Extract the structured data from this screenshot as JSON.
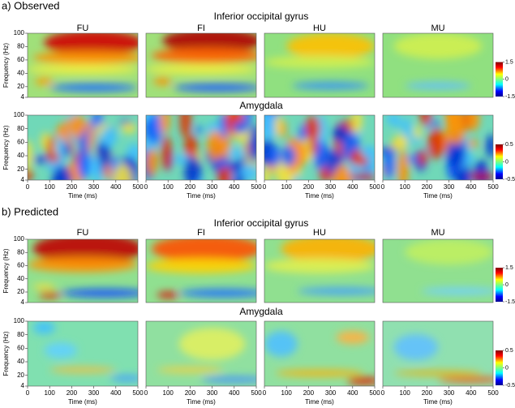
{
  "sections": [
    {
      "label": "a) Observed",
      "rows": [
        {
          "title": "Inferior occipital gyrus",
          "clim": [
            -1.5,
            1.5
          ],
          "cticks": [
            1.5,
            0,
            -1.5
          ]
        },
        {
          "title": "Amygdala",
          "clim": [
            -0.5,
            0.5
          ],
          "cticks": [
            0.5,
            0,
            -0.5
          ]
        }
      ]
    },
    {
      "label": "b) Predicted",
      "rows": [
        {
          "title": "Inferior occipital gyrus",
          "clim": [
            -1.5,
            1.5
          ],
          "cticks": [
            1.5,
            0,
            -1.5
          ]
        },
        {
          "title": "Amygdala",
          "clim": [
            -0.5,
            0.5
          ],
          "cticks": [
            0.5,
            0,
            -0.5
          ]
        }
      ]
    }
  ],
  "conditions": [
    "FU",
    "FI",
    "HU",
    "MU"
  ],
  "x_label": "Time (ms)",
  "xlim": [
    0,
    500
  ],
  "xticks": [
    0,
    100,
    200,
    300,
    400,
    500
  ],
  "y_label": "Frequency (Hz)",
  "ylim": [
    4,
    100
  ],
  "yticks": [
    4,
    20,
    40,
    60,
    80,
    100
  ]
}
